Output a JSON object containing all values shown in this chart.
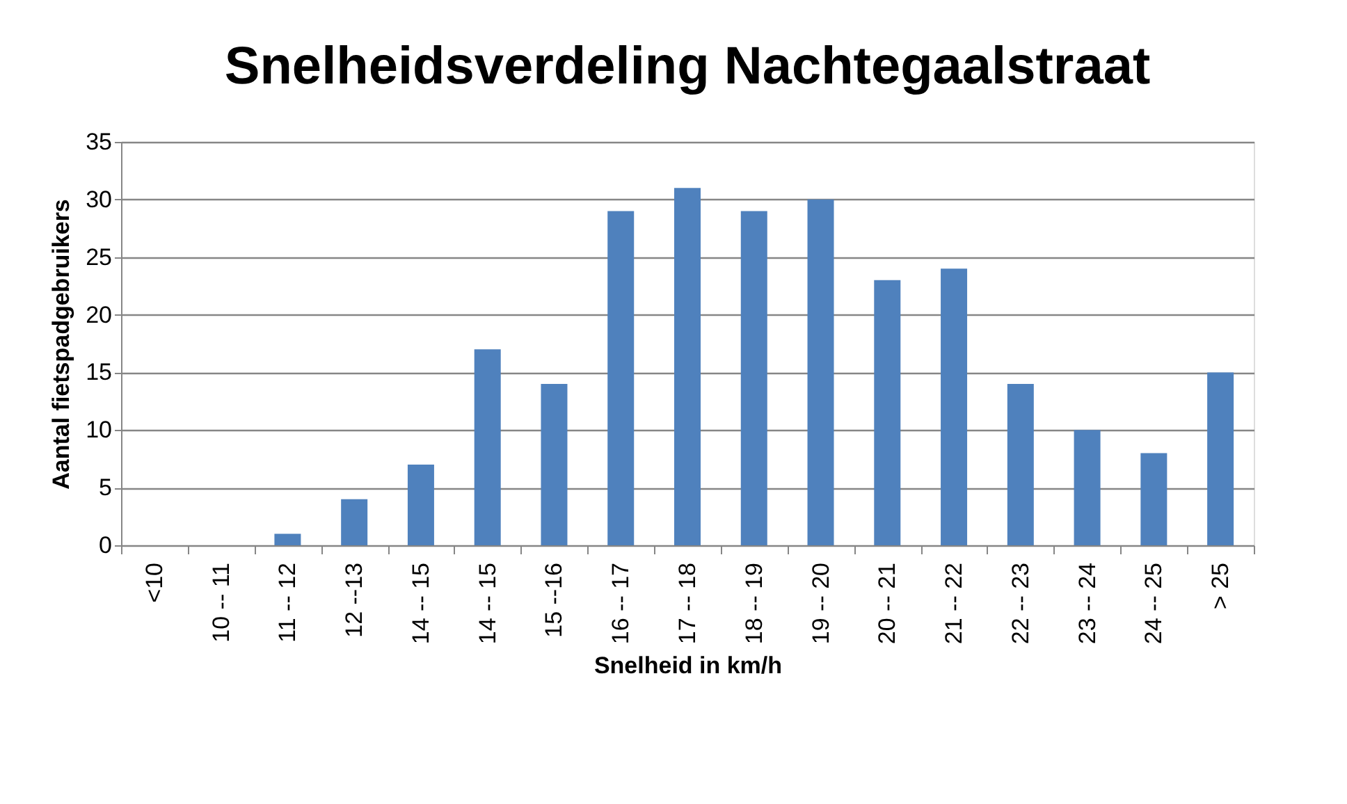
{
  "chart_data": {
    "type": "bar",
    "title": "Snelheidsverdeling Nachtegaalstraat",
    "xlabel": "Snelheid in km/h",
    "ylabel": "Aantal fietspadgebruikers",
    "categories": [
      "<10",
      "10 -- 11",
      "11 -- 12",
      "12 --13",
      "14 -- 15",
      "14 -- 15",
      "15 --16",
      "16 -- 17",
      "17 -- 18",
      "18 -- 19",
      "19 -- 20",
      "20 -- 21",
      "21 -- 22",
      "22 -- 23",
      "23 -- 24",
      "24 -- 25",
      "> 25"
    ],
    "values": [
      0,
      0,
      1,
      4,
      7,
      17,
      14,
      29,
      31,
      29,
      30,
      23,
      24,
      14,
      10,
      8,
      15
    ],
    "color": "#4f81bd",
    "ylim": [
      0,
      35
    ],
    "yticks": [
      0,
      5,
      10,
      15,
      20,
      25,
      30,
      35
    ],
    "grid": "y"
  }
}
